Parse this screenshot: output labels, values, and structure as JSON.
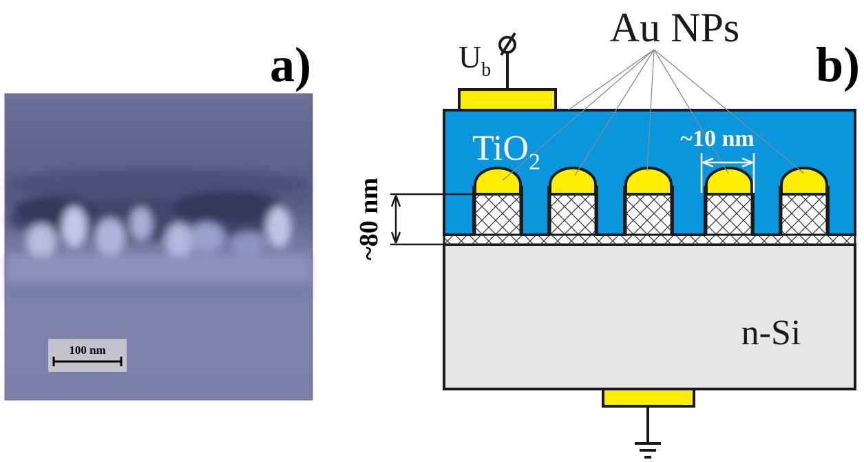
{
  "panel_a": {
    "label": "a)",
    "scale_bar_text": "100 nm"
  },
  "panel_b": {
    "label": "b)",
    "bias_symbol": "U",
    "bias_subscript": "b",
    "np_label": "Au NPs",
    "oxide_label": "TiO",
    "oxide_subscript": "2",
    "np_size_label": "~10 nm",
    "height_label": "~80 nm",
    "substrate_label": "n-Si",
    "nanoparticle_count": 5
  },
  "colors": {
    "sem_base": "#7c82a8",
    "tio2": "#0a96dc",
    "gold": "#ffee00",
    "silicon": "#e6e6e8",
    "outline": "#1a1a1a",
    "scale_box": "#c3c3cd"
  }
}
